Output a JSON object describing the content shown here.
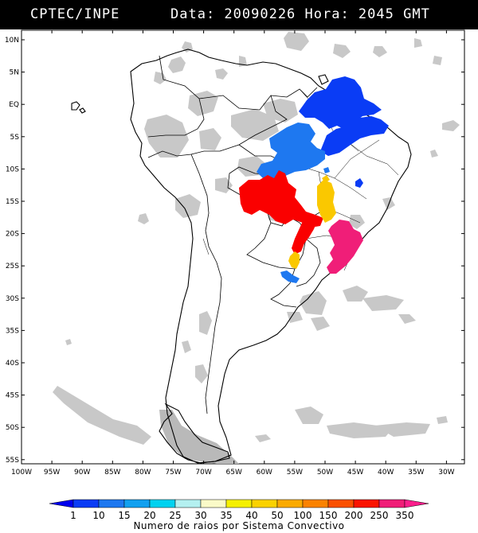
{
  "header": {
    "source": "CPTEC/INPE",
    "datetime": "Data: 20090226 Hora: 2045 GMT"
  },
  "map": {
    "region": "South America",
    "lon_range": [
      -100,
      -27
    ],
    "lat_range": [
      -56,
      13
    ],
    "lat_ticks": [
      "10N",
      "5N",
      "EQ",
      "5S",
      "10S",
      "15S",
      "20S",
      "25S",
      "30S",
      "35S",
      "40S",
      "45S",
      "50S",
      "55S"
    ],
    "lon_ticks": [
      "100W",
      "95W",
      "90W",
      "85W",
      "80W",
      "75W",
      "70W",
      "65W",
      "60W",
      "55W",
      "50W",
      "45W",
      "40W",
      "35W",
      "30W"
    ]
  },
  "legend": {
    "title": "Numero de raios por Sistema Convectivo",
    "labels": [
      "1",
      "10",
      "15",
      "20",
      "25",
      "30",
      "35",
      "40",
      "50",
      "100",
      "150",
      "200",
      "250",
      "350"
    ],
    "colors": [
      "#0000ee",
      "#0a3cf5",
      "#1e78f0",
      "#12a0f0",
      "#00d2f0",
      "#b4f0f0",
      "#fafac8",
      "#f5f000",
      "#fad200",
      "#faaa00",
      "#fa8200",
      "#fa5000",
      "#fa1400",
      "#f01e78",
      "#fa1e8c"
    ]
  },
  "systems": [
    {
      "name": "amazon-north",
      "color": "#0a3cf5"
    },
    {
      "name": "amazon-central",
      "color": "#1e78f0"
    },
    {
      "name": "northeast",
      "color": "#0a3cf5"
    },
    {
      "name": "bolivia-mato-grosso",
      "color": "#fa0000"
    },
    {
      "name": "goias",
      "color": "#fac800"
    },
    {
      "name": "minas-sao-paulo",
      "color": "#f01e78"
    },
    {
      "name": "parana",
      "color": "#fac800"
    },
    {
      "name": "paraguay",
      "color": "#1e78f0"
    },
    {
      "name": "mato-grosso-sul",
      "color": "#fa0000"
    }
  ]
}
